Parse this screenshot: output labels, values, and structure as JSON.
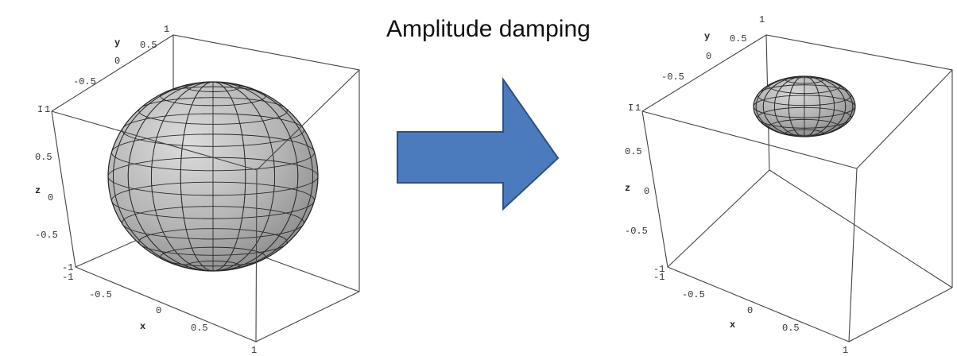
{
  "title": "Amplitude damping",
  "left_plot": {
    "axis_labels": {
      "x": "x",
      "y": "y",
      "z": "z"
    },
    "x_ticks": [
      "-1",
      "-0.5",
      "0",
      "0.5",
      "1"
    ],
    "y_ticks": [
      "0.5",
      "0",
      "-0.5"
    ],
    "y_top_tick": "1",
    "z_ticks": [
      "1",
      "0.5",
      "0",
      "-0.5",
      "-1"
    ],
    "corner_label": "I"
  },
  "right_plot": {
    "axis_labels": {
      "x": "x",
      "y": "y",
      "z": "z"
    },
    "x_ticks": [
      "-1",
      "-0.5",
      "0",
      "0.5",
      "1"
    ],
    "y_ticks": [
      "0.5",
      "0",
      "-0.5"
    ],
    "y_top_tick": "1",
    "z_ticks": [
      "1",
      "0.5",
      "0",
      "-0.5",
      "-1"
    ],
    "corner_label": "I"
  },
  "colors": {
    "arrow_fill": "#4b7bbd",
    "arrow_stroke": "#2d4f85",
    "surface_light": "#d6d6d6",
    "surface_dark": "#8a8a8a"
  }
}
